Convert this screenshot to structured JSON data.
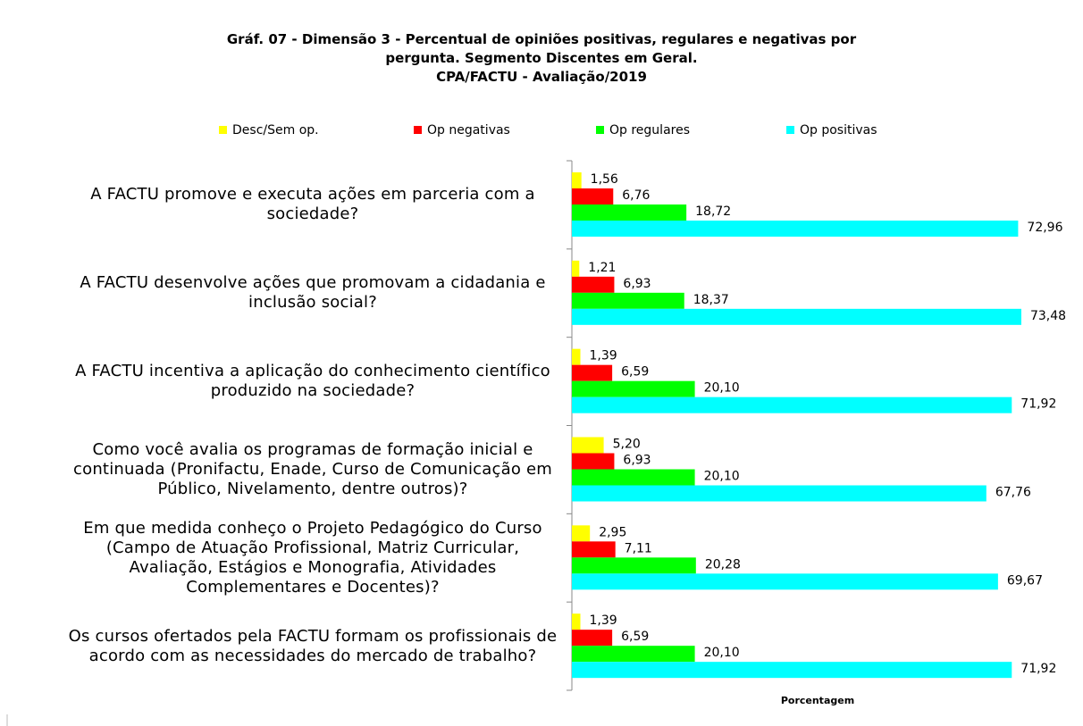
{
  "chart_data": {
    "type": "barh",
    "title": [
      "Gráf. 07 - Dimensão 3 - Percentual de opiniões positivas, regulares e negativas por",
      "pergunta. Segmento Discentes em Geral.",
      "CPA/FACTU - Avaliação/2019"
    ],
    "x_label": "Porcentagem",
    "categories": [
      "A FACTU promove e executa ações em parceria com a sociedade?",
      "A FACTU desenvolve ações que promovam a cidadania e inclusão social?",
      "A FACTU incentiva a aplicação do conhecimento científico produzido na sociedade?",
      "Como você avalia os programas de formação inicial e continuada (Pronifactu, Enade, Curso de Comunicação em Público, Nivelamento, dentre outros)?",
      "Em que medida conheço o Projeto Pedagógico do Curso (Campo de Atuação Profissional, Matriz Curricular, Avaliação, Estágios e Monografia, Atividades Complementares e Docentes)?",
      "Os cursos ofertados pela FACTU formam os profissionais de acordo com as necessidades do mercado de trabalho?"
    ],
    "series": [
      {
        "name": "Desc/Sem op.",
        "color": "#ffff00",
        "values": [
          1.56,
          1.21,
          1.39,
          5.2,
          2.95,
          1.39
        ],
        "value_labels": [
          "1,56",
          "1,21",
          "1,39",
          "5,20",
          "2,95",
          "1,39"
        ]
      },
      {
        "name": "Op negativas",
        "color": "#ff0000",
        "values": [
          6.76,
          6.93,
          6.59,
          6.93,
          7.11,
          6.59
        ],
        "value_labels": [
          "6,76",
          "6,93",
          "6,59",
          "6,93",
          "7,11",
          "6,59"
        ]
      },
      {
        "name": "Op regulares",
        "color": "#00ff00",
        "values": [
          18.72,
          18.37,
          20.1,
          20.1,
          20.28,
          20.1
        ],
        "value_labels": [
          "18,72",
          "18,37",
          "20,10",
          "20,10",
          "20,28",
          "20,10"
        ]
      },
      {
        "name": "Op positivas",
        "color": "#00ffff",
        "values": [
          72.96,
          73.48,
          71.92,
          67.76,
          69.67,
          71.92
        ],
        "value_labels": [
          "72,96",
          "73,48",
          "71,92",
          "67,76",
          "69,67",
          "71,92"
        ]
      }
    ],
    "xlim": [
      0,
      80
    ],
    "legend": "top"
  }
}
